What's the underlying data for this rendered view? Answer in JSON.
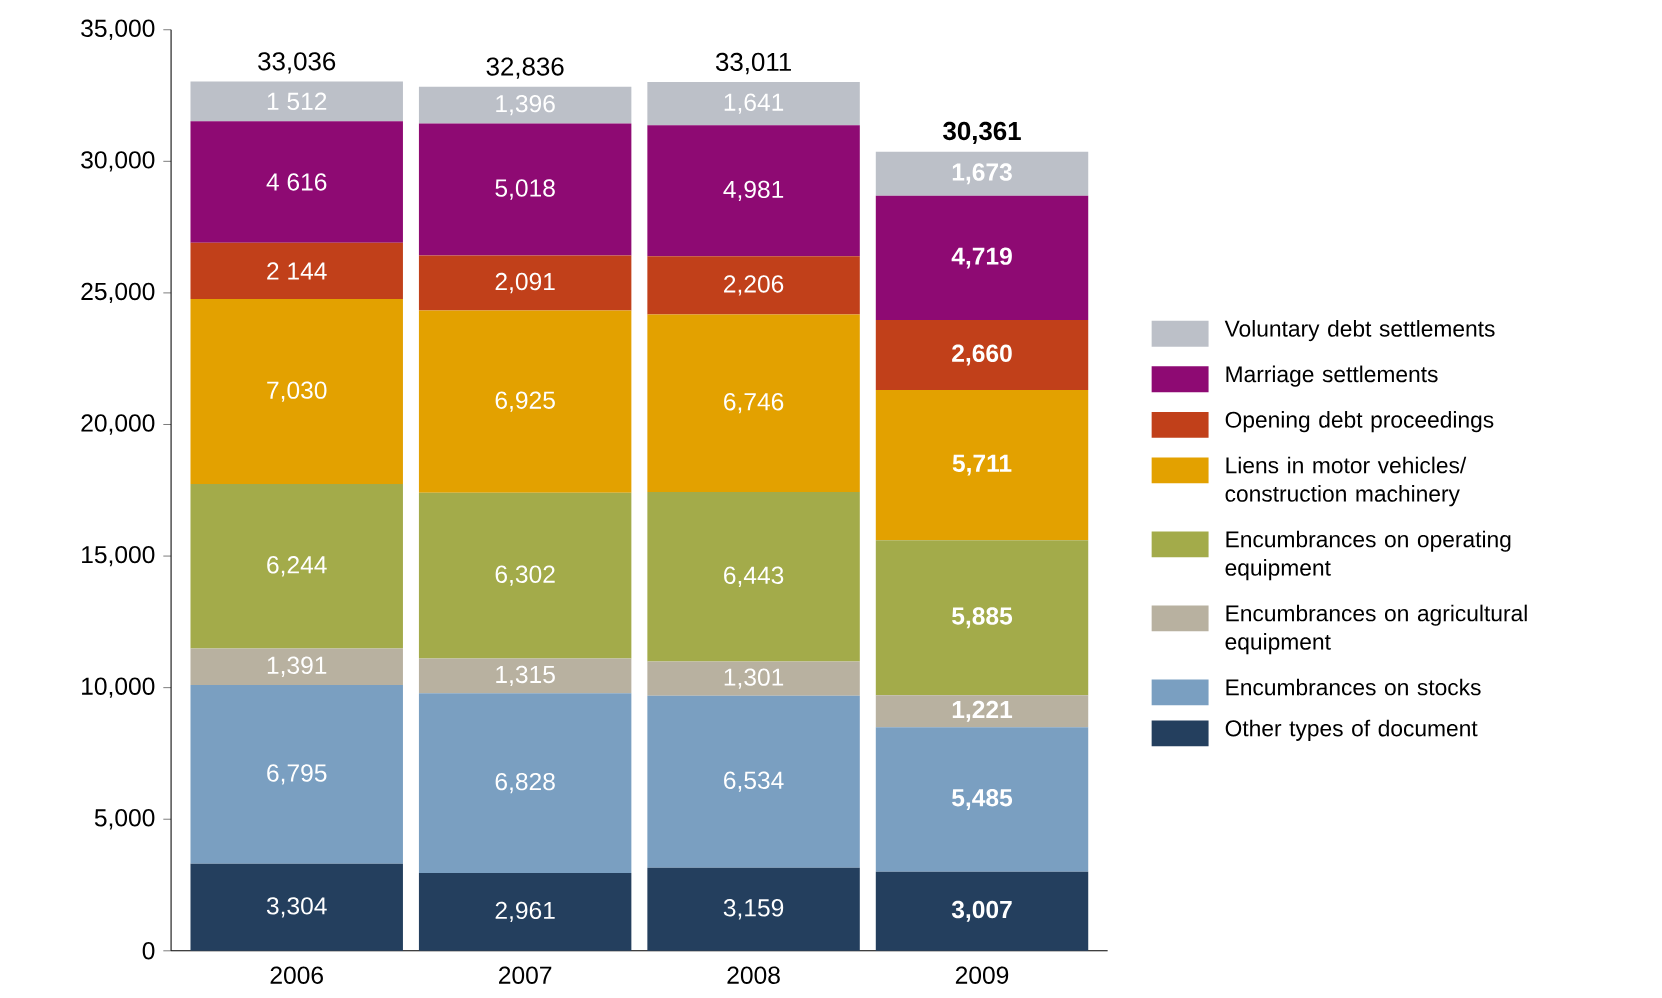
{
  "chart_data": {
    "type": "bar",
    "stacked": true,
    "legend": "right",
    "categories": [
      "2006",
      "2007",
      "2008",
      "2009"
    ],
    "ylim": [
      0,
      35000
    ],
    "yticks": [
      0,
      {
        "value": 5000,
        "label": "5,000"
      },
      {
        "value": 10000,
        "label": "10,000"
      },
      {
        "value": 15000,
        "label": "15,000"
      },
      {
        "value": 20000,
        "label": "20,000"
      },
      {
        "value": 25000,
        "label": "25,000"
      },
      {
        "value": 30000,
        "label": "30,000"
      },
      {
        "value": 35000,
        "label": "35,000"
      }
    ],
    "series": [
      {
        "name": "Other types of document",
        "color": "#243f5e",
        "values": [
          3304,
          2961,
          3159,
          3007
        ],
        "value_labels": [
          "3,304",
          "2,961",
          "3,159",
          "3,007"
        ]
      },
      {
        "name": "Encumbrances on stocks",
        "color": "#7a9fc1",
        "values": [
          6795,
          6828,
          6534,
          5485
        ],
        "value_labels": [
          "6,795",
          "6,828",
          "6,534",
          "5,485"
        ]
      },
      {
        "name": "Encumbrances on agricultural equipment",
        "color": "#b8b1a0",
        "values": [
          1391,
          1315,
          1301,
          1221
        ],
        "value_labels": [
          "1,391",
          "1,315",
          "1,301",
          "1,221"
        ]
      },
      {
        "name": "Encumbrances on operating equipment",
        "color": "#a3ab4a",
        "values": [
          6244,
          6302,
          6443,
          5885
        ],
        "value_labels": [
          "6,244",
          "6,302",
          "6,443",
          "5,885"
        ]
      },
      {
        "name": "Liens in motor vehicles/ construction machinery",
        "color": "#e3a100",
        "values": [
          7030,
          6925,
          6746,
          5711
        ],
        "value_labels": [
          "7,030",
          "6,925",
          "6,746",
          "5,711"
        ]
      },
      {
        "name": "Opening debt proceedings",
        "color": "#c1401a",
        "values": [
          2144,
          2091,
          2206,
          2660
        ],
        "value_labels": [
          "2 144",
          "2,091",
          "2,206",
          "2,660"
        ]
      },
      {
        "name": "Marriage settlements",
        "color": "#8e0a73",
        "values": [
          4616,
          5018,
          4981,
          4719
        ],
        "value_labels": [
          "4 616",
          "5,018",
          "4,981",
          "4,719"
        ]
      },
      {
        "name": "Voluntary debt settlements",
        "color": "#bcc0c8",
        "values": [
          1512,
          1396,
          1641,
          1673
        ],
        "value_labels": [
          "1 512",
          "1,396",
          "1,641",
          "1,673"
        ]
      }
    ],
    "totals": [
      "33,036",
      "32,836",
      "33,011",
      "30,361"
    ]
  }
}
